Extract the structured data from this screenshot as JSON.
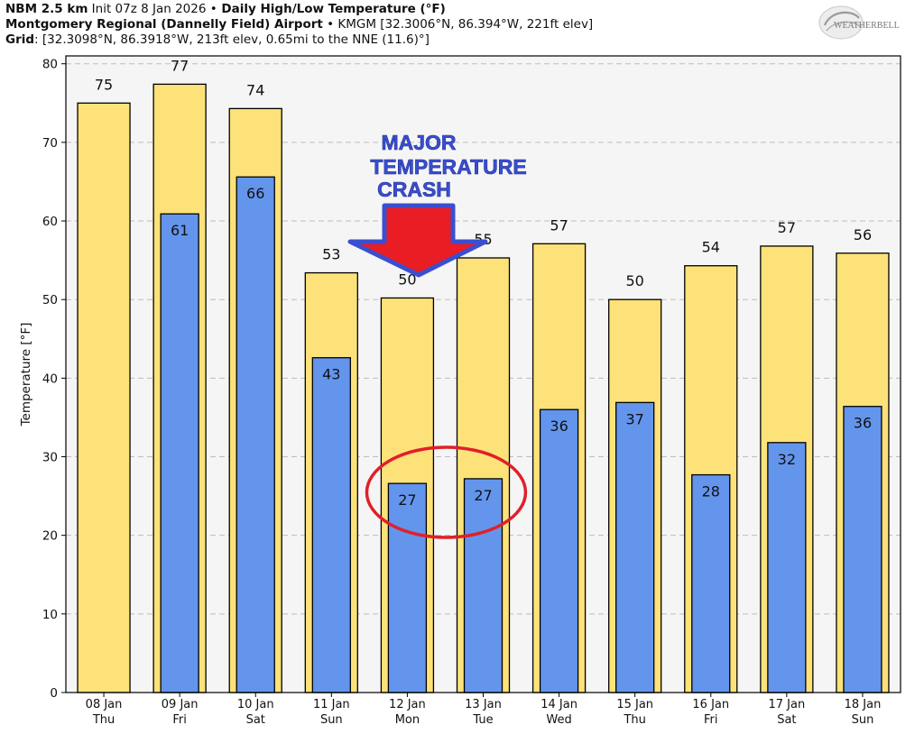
{
  "header": {
    "line1_bold": "NBM 2.5 km",
    "line1_init": " Init 07z 8 Jan 2026 ",
    "line1_bullet": "•",
    "line1_title": " Daily High/Low Temperature (°F)",
    "line2_bold": "Montgomery Regional (Dannelly Field) Airport",
    "line2_rest": " • KMGM [32.3006°N, 86.394°W, 221ft elev]",
    "line3_bold": "Grid",
    "line3_rest": ": [32.3098°N, 86.3918°W, 213ft elev, 0.65mi to the NNE (11.6)°]"
  },
  "logo": {
    "text": "WEATHERBELL",
    "icon": "weatherbell-swirl-logo"
  },
  "chart_data": {
    "type": "bar",
    "ylabel": "Temperature [°F]",
    "ylim": [
      0,
      81
    ],
    "yticks": [
      0,
      10,
      20,
      30,
      40,
      50,
      60,
      70,
      80
    ],
    "grid": "horizontal-dashed",
    "categories": [
      {
        "date": "08 Jan",
        "day": "Thu"
      },
      {
        "date": "09 Jan",
        "day": "Fri"
      },
      {
        "date": "10 Jan",
        "day": "Sat"
      },
      {
        "date": "11 Jan",
        "day": "Sun"
      },
      {
        "date": "12 Jan",
        "day": "Mon"
      },
      {
        "date": "13 Jan",
        "day": "Tue"
      },
      {
        "date": "14 Jan",
        "day": "Wed"
      },
      {
        "date": "15 Jan",
        "day": "Thu"
      },
      {
        "date": "16 Jan",
        "day": "Fri"
      },
      {
        "date": "17 Jan",
        "day": "Sat"
      },
      {
        "date": "18 Jan",
        "day": "Sun"
      }
    ],
    "series": [
      {
        "values": [
          75,
          77.4,
          74.3,
          53.4,
          50.2,
          55.3,
          57.1,
          50.0,
          54.3,
          56.8,
          55.9
        ],
        "labels": [
          "75",
          "77",
          "74",
          "53",
          "50",
          "55",
          "57",
          "50",
          "54",
          "57",
          "56"
        ],
        "color": "#fde27a"
      },
      {
        "values": [
          null,
          60.9,
          65.6,
          42.6,
          26.6,
          27.2,
          36.0,
          36.9,
          27.7,
          31.8,
          36.4
        ],
        "labels": [
          "",
          "61",
          "66",
          "43",
          "27",
          "27",
          "36",
          "37",
          "28",
          "32",
          "36"
        ],
        "color": "#6495ed"
      }
    ],
    "annotations": [
      {
        "type": "text",
        "lines": [
          "MAJOR",
          "TEMPERATURE",
          "CRASH"
        ],
        "color": "#3a4fd0"
      },
      {
        "type": "arrow",
        "direction": "down",
        "fill": "#ea1c24",
        "stroke": "#3a4fd0"
      },
      {
        "type": "ellipse",
        "around": [
          "12 Jan",
          "13 Jan"
        ],
        "stroke": "#e0202a"
      }
    ],
    "colors": {
      "plot_bg": "#f5f5f5",
      "high": "#fde27a",
      "low": "#6495ed"
    }
  }
}
